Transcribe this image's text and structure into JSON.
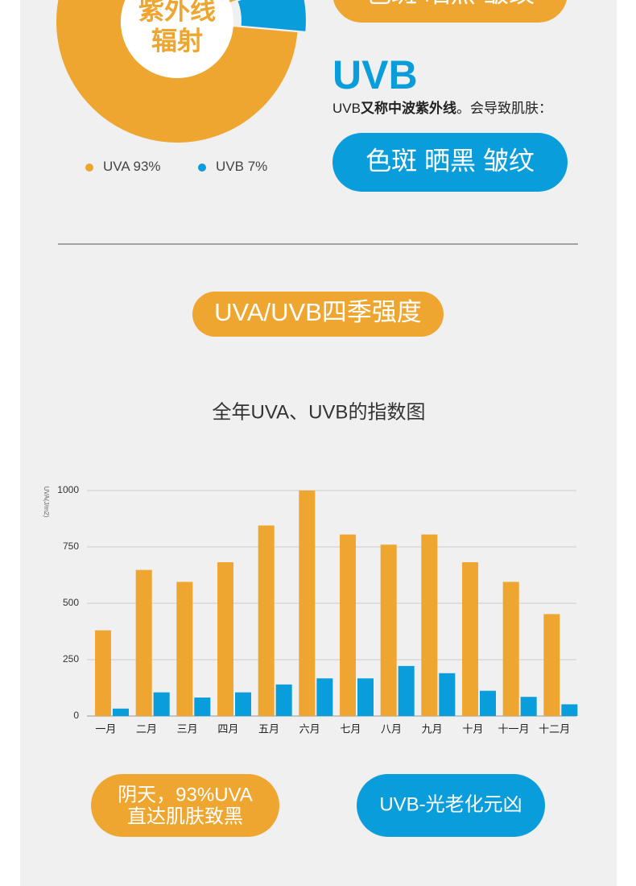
{
  "top_tags": "色斑 晒黑 皱纹",
  "uvb_heading": "UVB",
  "uvb_desc": [
    "UVB",
    "又称中波紫外线",
    "。会导致肌肤："
  ],
  "uvb_tags": "色斑 晒黑 皱纹",
  "section_title": "UVA/UVB四季强度",
  "callouts": {
    "uva": [
      "阴天，93%UVA",
      "直达肌肤致黑"
    ],
    "uvb": "UVB-光老化元凶"
  },
  "chart_data": [
    {
      "type": "pie",
      "center_label": [
        "紫外线",
        "辐射"
      ],
      "categories": [
        "UVA",
        "UVB"
      ],
      "values": [
        93,
        7
      ],
      "value_labels": [
        "93%",
        "7%"
      ],
      "colors": [
        "#eea630",
        "#0a9ddc"
      ]
    },
    {
      "type": "bar",
      "title": "全年UVA、UVB的指数图",
      "y_label": "UVA(J/m2)",
      "categories": [
        "一月",
        "二月",
        "三月",
        "四月",
        "五月",
        "六月",
        "七月",
        "八月",
        "九月",
        "十月",
        "十一月",
        "十二月"
      ],
      "series": [
        {
          "color": "#eea630",
          "values": [
            380,
            648,
            595,
            682,
            845,
            1000,
            805,
            760,
            805,
            682,
            595,
            452
          ]
        },
        {
          "color": "#0a9ddc",
          "values": [
            33,
            105,
            82,
            105,
            140,
            167,
            167,
            222,
            190,
            112,
            85,
            52
          ]
        }
      ],
      "ylim": [
        0,
        1000
      ],
      "yticks": [
        0,
        250,
        500,
        750,
        1000
      ],
      "grid": true
    }
  ]
}
